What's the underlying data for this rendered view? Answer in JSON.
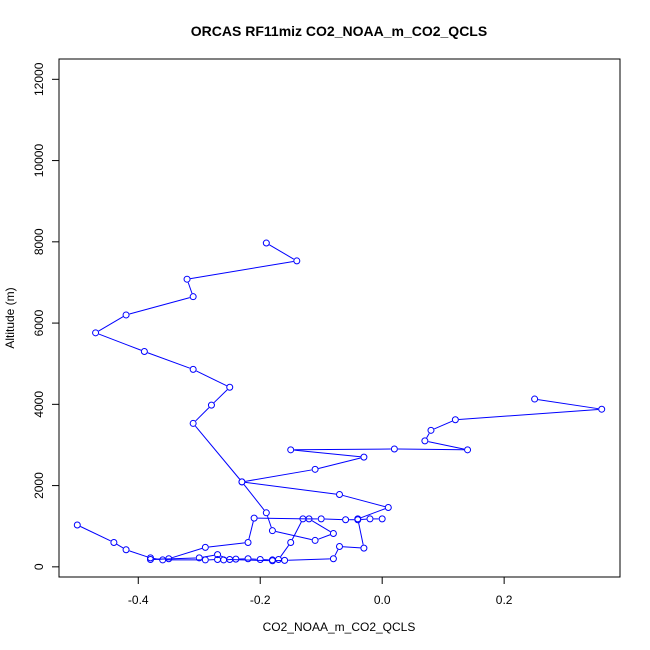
{
  "chart_data": {
    "type": "line",
    "title": "ORCAS RF11miz CO2_NOAA_m_CO2_QCLS",
    "xlabel": "CO2_NOAA_m_CO2_QCLS",
    "ylabel": "Altitude (m)",
    "xlim": [
      -0.53,
      0.39
    ],
    "ylim": [
      -250,
      12500
    ],
    "xticks": [
      -0.4,
      -0.2,
      0.0,
      0.2
    ],
    "xtick_labels": [
      "-0.4",
      "-0.2",
      "0.0",
      "0.2"
    ],
    "yticks": [
      0,
      2000,
      4000,
      6000,
      8000,
      10000,
      12000
    ],
    "ytick_labels": [
      "0",
      "2000",
      "4000",
      "6000",
      "8000",
      "10000",
      "12000"
    ],
    "grid": false,
    "series_color": "#0000ff",
    "series": [
      {
        "x": [
          -0.19,
          -0.14,
          -0.32,
          -0.31,
          -0.42,
          -0.47,
          -0.39,
          -0.31,
          -0.25,
          -0.28,
          -0.31,
          -0.23,
          -0.19,
          -0.18,
          -0.11,
          -0.08,
          -0.12,
          -0.21,
          -0.22,
          -0.29,
          -0.35,
          -0.38,
          -0.3,
          -0.27,
          -0.25,
          -0.18,
          -0.16,
          -0.08,
          -0.07,
          -0.03,
          -0.04,
          0.01,
          -0.07,
          -0.23,
          -0.11,
          -0.03,
          -0.15,
          0.02,
          0.14,
          0.07,
          0.08,
          0.12,
          0.36,
          0.25
        ],
        "y": [
          7970,
          7530,
          7080,
          6650,
          6200,
          5760,
          5300,
          4860,
          4420,
          3980,
          3530,
          2090,
          1330,
          890,
          650,
          820,
          1180,
          1200,
          600,
          480,
          200,
          180,
          220,
          300,
          180,
          150,
          160,
          200,
          500,
          460,
          1180,
          1460,
          1780,
          2090,
          2400,
          2700,
          2880,
          2900,
          2880,
          3100,
          3360,
          3620,
          3880,
          4130
        ]
      },
      {
        "x": [
          -0.5,
          -0.44,
          -0.42,
          -0.38,
          -0.36,
          -0.29,
          -0.27,
          -0.26,
          -0.24,
          -0.22,
          -0.2,
          -0.18,
          -0.17,
          -0.15,
          -0.13,
          -0.1,
          -0.06,
          -0.04,
          -0.02,
          0.0
        ],
        "y": [
          1030,
          600,
          420,
          220,
          170,
          170,
          180,
          170,
          190,
          200,
          180,
          170,
          180,
          600,
          1180,
          1180,
          1160,
          1160,
          1180,
          1180
        ]
      }
    ]
  }
}
